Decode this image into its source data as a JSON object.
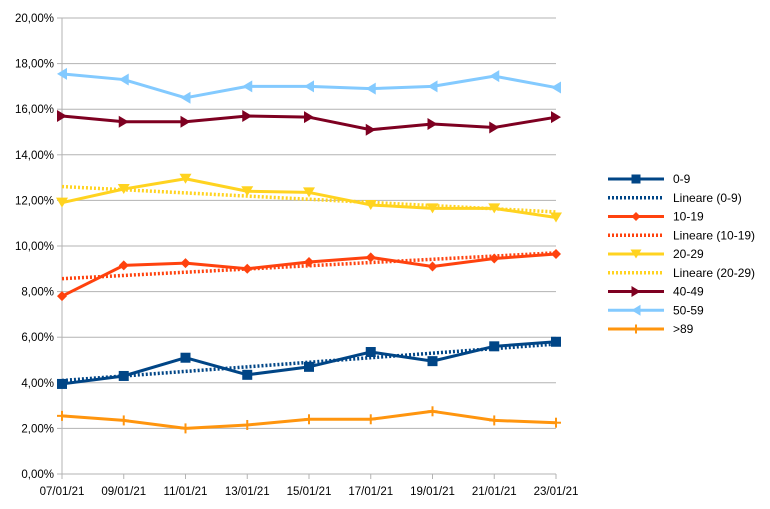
{
  "chart_data": {
    "type": "line",
    "title": "",
    "xlabel": "",
    "ylabel": "",
    "categories": [
      "07/01/21",
      "09/01/21",
      "11/01/21",
      "13/01/21",
      "15/01/21",
      "17/01/21",
      "19/01/21",
      "21/01/21",
      "23/01/21"
    ],
    "ylim": [
      0,
      20
    ],
    "yticks": [
      "0,00%",
      "2,00%",
      "4,00%",
      "6,00%",
      "8,00%",
      "10,00%",
      "12,00%",
      "14,00%",
      "16,00%",
      "18,00%",
      "20,00%"
    ],
    "grid": "horizontal",
    "legend_position": "right",
    "series": [
      {
        "name": "0-9",
        "color": "#004586",
        "marker": "square",
        "style": "solid",
        "values": [
          3.95,
          4.3,
          5.1,
          4.35,
          4.7,
          5.35,
          4.95,
          5.6,
          5.8
        ]
      },
      {
        "name": "Lineare (0-9)",
        "color": "#004586",
        "marker": "none",
        "style": "dotted",
        "trend_of": "0-9"
      },
      {
        "name": "10-19",
        "color": "#ff420e",
        "marker": "diamond",
        "style": "solid",
        "values": [
          7.8,
          9.15,
          9.25,
          9.0,
          9.3,
          9.5,
          9.1,
          9.45,
          9.65
        ]
      },
      {
        "name": "Lineare (10-19)",
        "color": "#ff420e",
        "marker": "none",
        "style": "dotted",
        "trend_of": "10-19"
      },
      {
        "name": "20-29",
        "color": "#ffd320",
        "marker": "triangle-down",
        "style": "solid",
        "values": [
          11.9,
          12.5,
          12.95,
          12.4,
          12.35,
          11.8,
          11.65,
          11.65,
          11.25
        ]
      },
      {
        "name": "Lineare (20-29)",
        "color": "#ffd320",
        "marker": "none",
        "style": "dotted",
        "trend_of": "20-29"
      },
      {
        "name": "40-49",
        "color": "#7e0021",
        "marker": "triangle-right",
        "style": "solid",
        "values": [
          15.7,
          15.45,
          15.45,
          15.7,
          15.65,
          15.1,
          15.35,
          15.2,
          15.65
        ]
      },
      {
        "name": "50-59",
        "color": "#83caff",
        "marker": "triangle-left",
        "style": "solid",
        "values": [
          17.55,
          17.3,
          16.5,
          17.0,
          17.0,
          16.9,
          17.0,
          17.45,
          16.95
        ]
      },
      {
        "name": ">89",
        "color": "#ff950e",
        "marker": "plus",
        "style": "solid",
        "values": [
          2.55,
          2.35,
          2.0,
          2.15,
          2.4,
          2.4,
          2.75,
          2.35,
          2.25
        ]
      }
    ]
  }
}
